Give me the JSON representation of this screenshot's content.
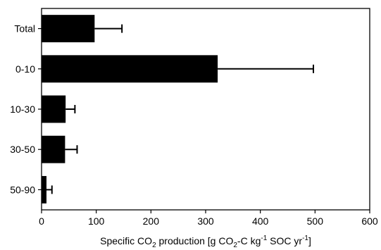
{
  "chart_data": {
    "type": "bar",
    "orientation": "horizontal",
    "categories": [
      "Total",
      "0-10",
      "10-30",
      "30-50",
      "50-90"
    ],
    "values": [
      97,
      322,
      44,
      43,
      9
    ],
    "errors": [
      50,
      175,
      17,
      22,
      10
    ],
    "xlim": [
      0,
      600
    ],
    "xticks": [
      0,
      100,
      200,
      300,
      400,
      500,
      600
    ],
    "xlabel": {
      "prefix": "Specific CO",
      "sub1": "2",
      "middle": " production [g CO",
      "sub2": "2",
      "middle2": "-C kg",
      "sup": "-1",
      "suffix": " SOC yr",
      "sup2": "-1",
      "end": "]"
    },
    "ylabel": "",
    "grid": false,
    "bar_color": "#000000"
  }
}
